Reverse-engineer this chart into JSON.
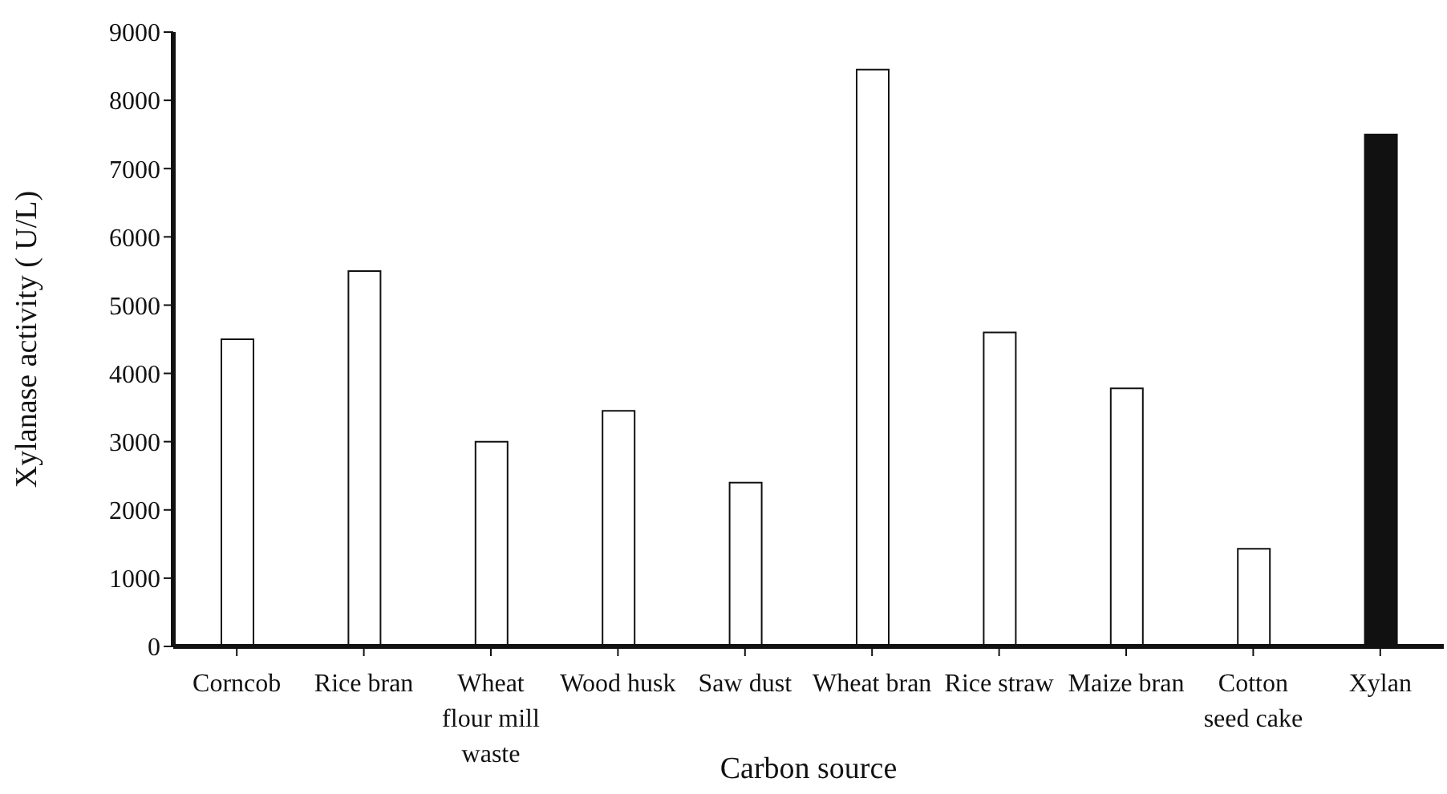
{
  "chart_data": {
    "type": "bar",
    "xlabel": "Carbon source",
    "ylabel": "Xylanase  activity ( U/L)",
    "categories": [
      "Corncob",
      "Rice bran",
      "Wheat flour mill waste",
      "Wood husk",
      "Saw dust",
      "Wheat bran",
      "Rice straw",
      "Maize bran",
      "Cotton seed cake",
      "Xylan"
    ],
    "values": [
      4500,
      5500,
      3000,
      3450,
      2400,
      8450,
      4600,
      3780,
      1430,
      7500
    ],
    "colors": [
      "#ffffff",
      "#ffffff",
      "#ffffff",
      "#ffffff",
      "#ffffff",
      "#ffffff",
      "#ffffff",
      "#ffffff",
      "#ffffff",
      "#111111"
    ],
    "ylim": [
      0,
      9000
    ],
    "yticks": [
      0,
      1000,
      2000,
      3000,
      4000,
      5000,
      6000,
      7000,
      8000,
      9000
    ],
    "grid": false,
    "legend": false
  }
}
